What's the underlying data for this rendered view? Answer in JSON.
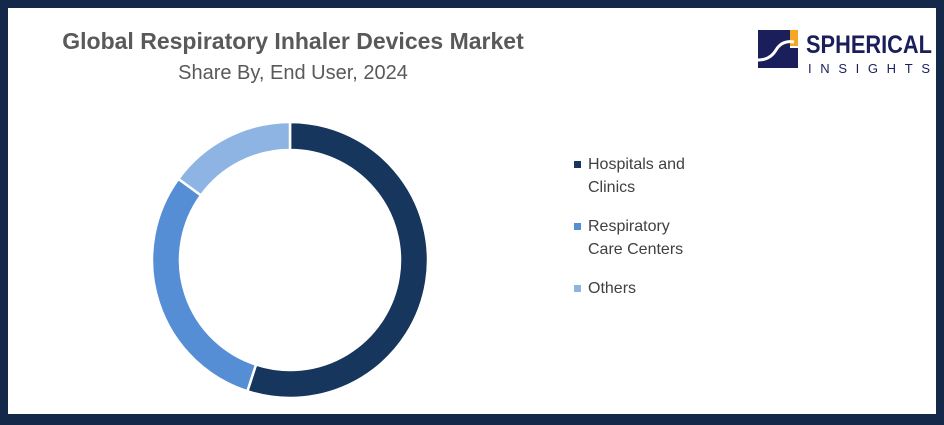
{
  "logo": {
    "line1": "SPHERICAL",
    "line2": "INSIGHTS"
  },
  "chart_data": {
    "type": "pie",
    "title": "Global Respiratory Inhaler Devices Market",
    "subtitle": "Share By, End User, 2024",
    "categories": [
      "Hospitals and Clinics",
      "Respiratory Care Centers",
      "Others"
    ],
    "legend_lines": [
      [
        "Hospitals and",
        "Clinics"
      ],
      [
        "Respiratory",
        "Care Centers"
      ],
      [
        "Others"
      ]
    ],
    "values": [
      55,
      30,
      15
    ],
    "colors": [
      "#17365d",
      "#558ed5",
      "#8eb4e3"
    ],
    "donut": true,
    "legend_position": "right"
  }
}
